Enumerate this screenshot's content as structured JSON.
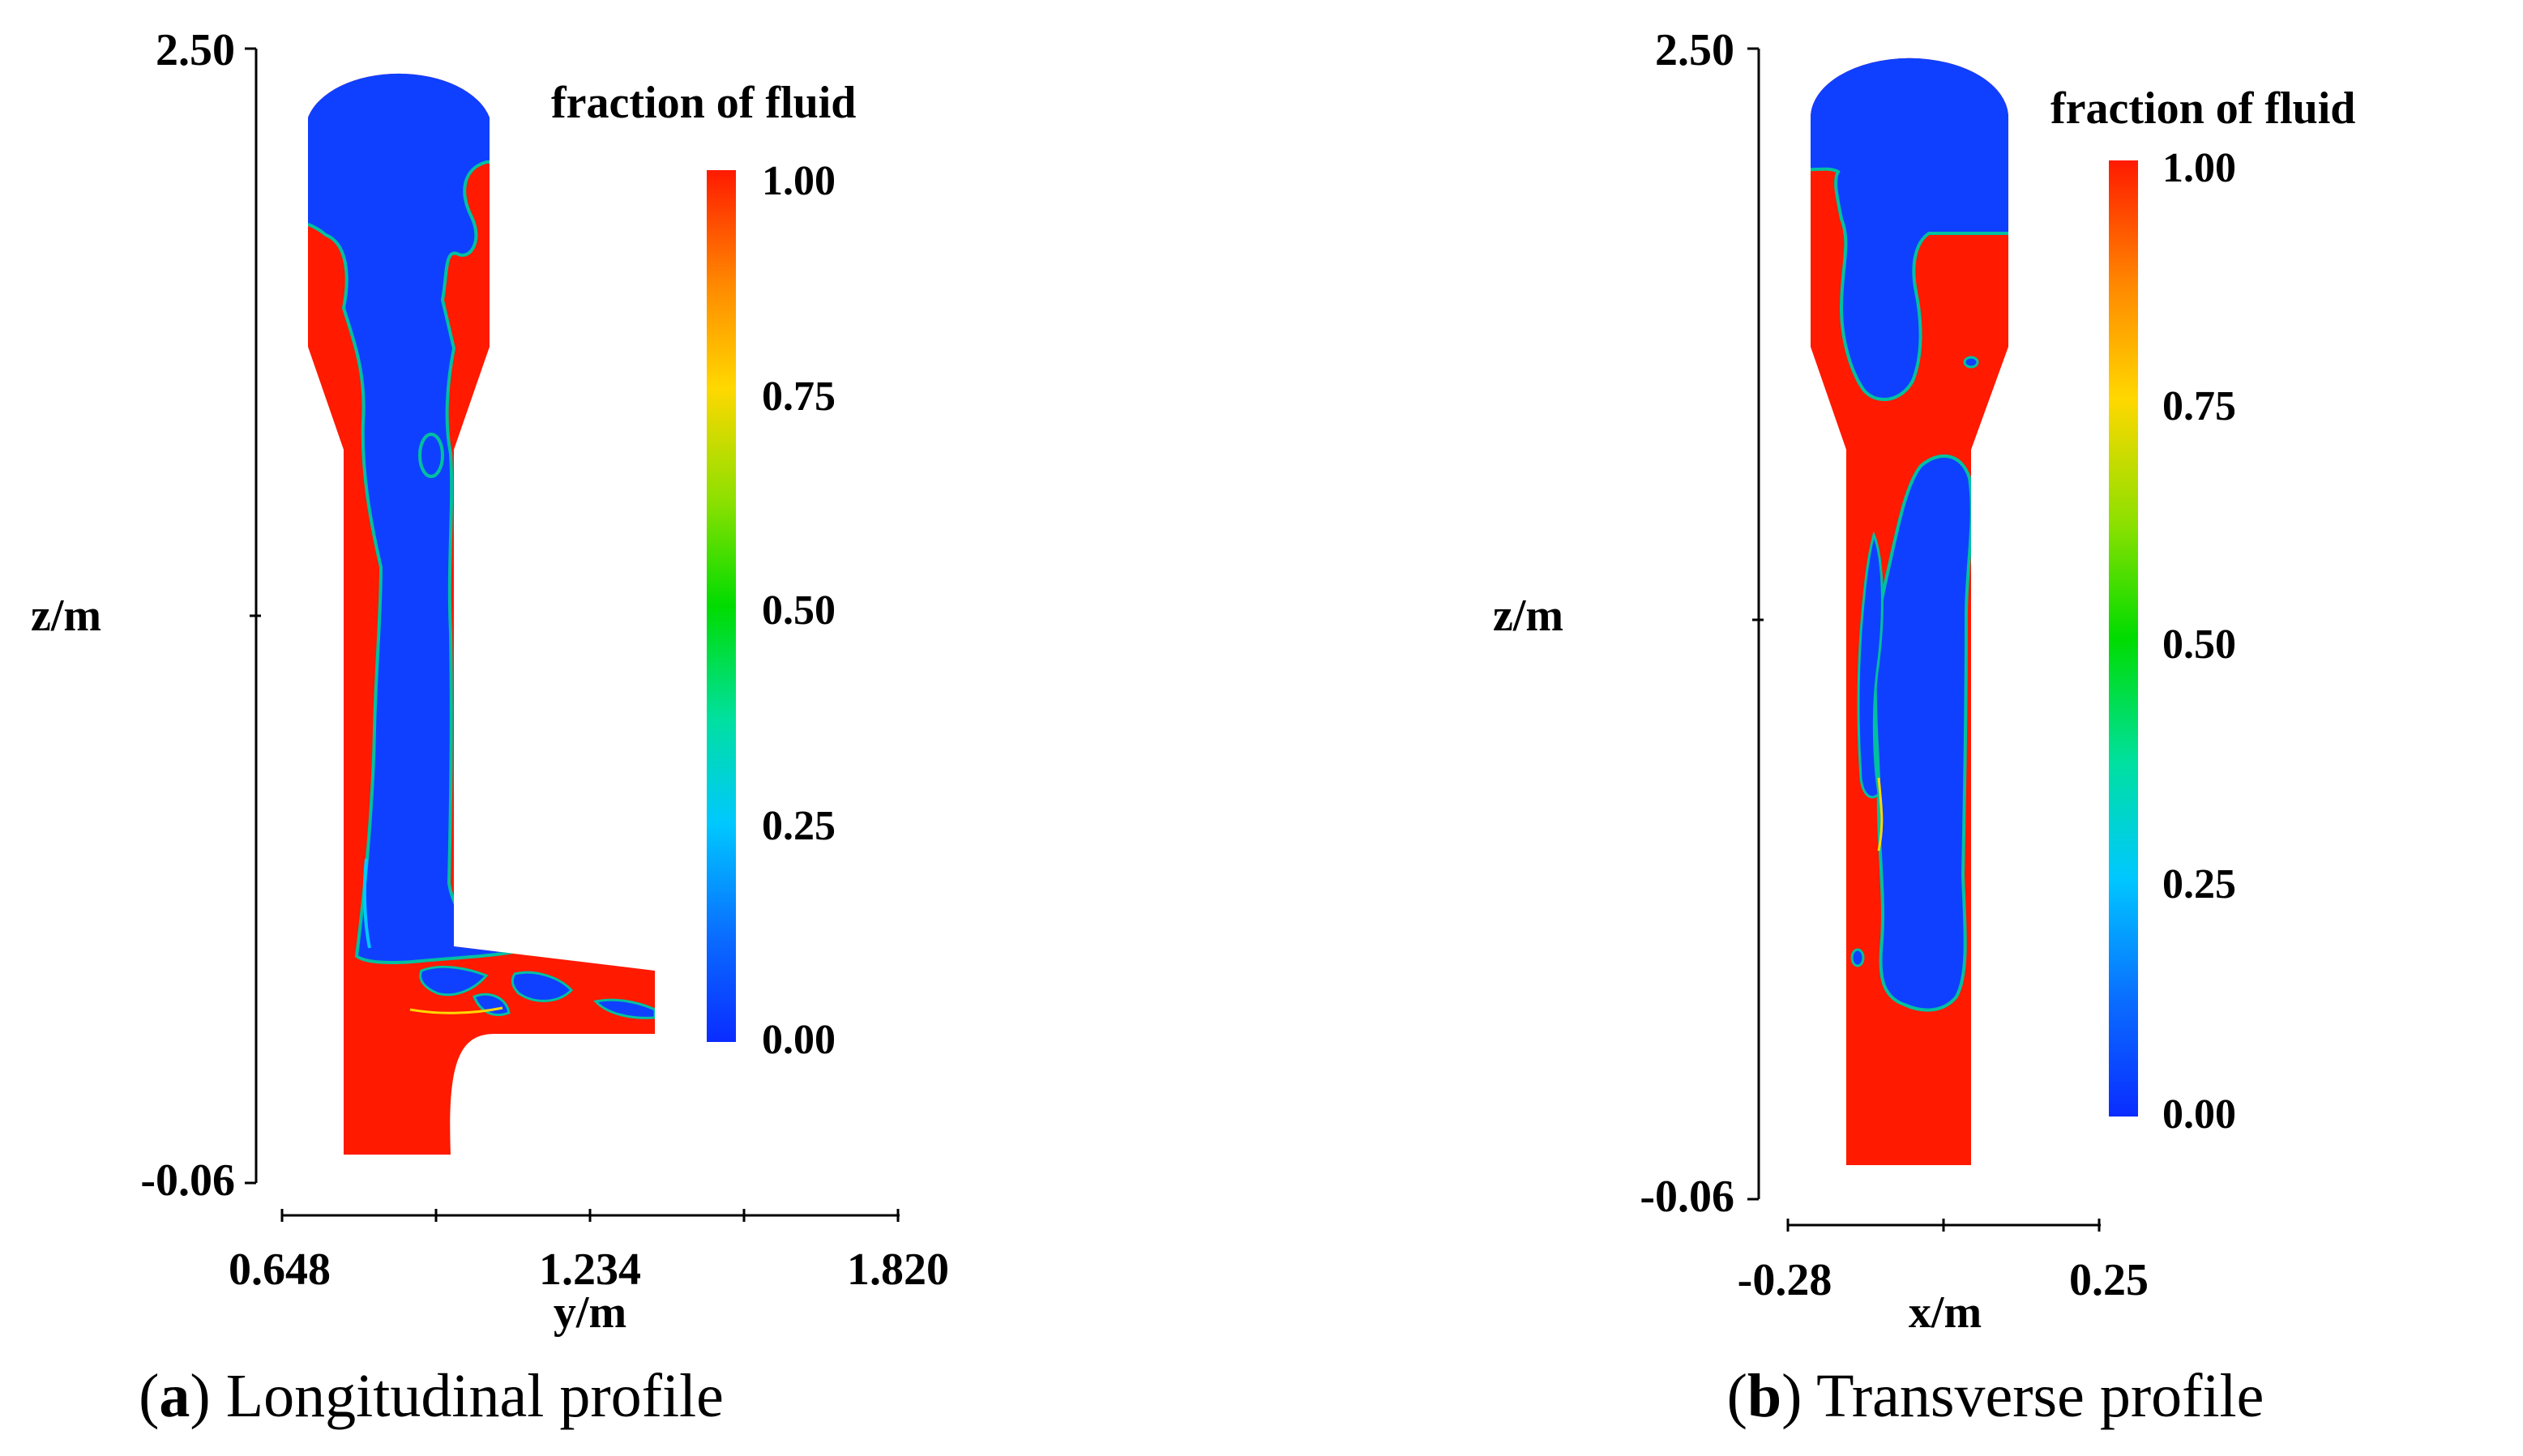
{
  "chart_data": [
    {
      "type": "heatmap",
      "panel": "a",
      "caption_letter": "a",
      "caption_text": "Longitudinal profile",
      "xlabel": "y/m",
      "ylabel": "z/m",
      "x_ticks": [
        "0.648",
        "1.234",
        "1.820"
      ],
      "x_range": [
        0.648,
        1.82
      ],
      "y_ticks": [
        "2.50",
        "-0.06"
      ],
      "y_range": [
        -0.06,
        2.5
      ],
      "colorbar_title": "fraction of fluid",
      "colorbar_ticks": [
        "1.00",
        "0.75",
        "0.50",
        "0.25",
        "0.00"
      ],
      "colorbar_range": [
        0,
        1
      ],
      "colors": {
        "fluid": "#ff1a00",
        "air": "#1040ff"
      }
    },
    {
      "type": "heatmap",
      "panel": "b",
      "caption_letter": "b",
      "caption_text": "Transverse profile",
      "xlabel": "x/m",
      "ylabel": "z/m",
      "x_ticks": [
        "-0.28",
        "0.25"
      ],
      "x_range": [
        -0.28,
        0.25
      ],
      "y_ticks": [
        "2.50",
        "-0.06"
      ],
      "y_range": [
        -0.06,
        2.5
      ],
      "colorbar_title": "fraction of fluid",
      "colorbar_ticks": [
        "1.00",
        "0.75",
        "0.50",
        "0.25",
        "0.00"
      ],
      "colorbar_range": [
        0,
        1
      ],
      "colors": {
        "fluid": "#ff1a00",
        "air": "#1040ff"
      }
    }
  ]
}
